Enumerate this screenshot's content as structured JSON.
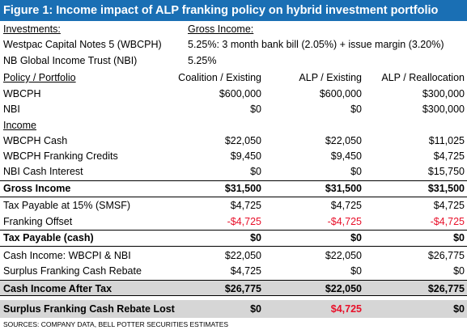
{
  "title": "Figure 1: Income impact of ALP franking policy on hybrid investment portfolio",
  "investments_header": "Investments:",
  "gross_income_header": "Gross Income:",
  "investments": [
    {
      "name": "Westpac Capital Notes 5 (WBCPH)",
      "income": "5.25%: 3 month bank bill (2.05%) + issue margin (3.20%)"
    },
    {
      "name": "NB Global Income Trust (NBI)",
      "income": "5.25%"
    }
  ],
  "columns": {
    "policy": "Policy / Portfolio",
    "c1": "Coalition / Existing",
    "c2": "ALP / Existing",
    "c3": "ALP / Reallocation"
  },
  "rows": [
    {
      "label": "WBCPH",
      "v": [
        "$600,000",
        "$600,000",
        "$300,000"
      ]
    },
    {
      "label": "NBI",
      "v": [
        "$0",
        "$0",
        "$300,000"
      ]
    },
    {
      "label": "Income",
      "v": [
        "",
        "",
        ""
      ]
    },
    {
      "label": "WBCPH Cash",
      "v": [
        "$22,050",
        "$22,050",
        "$11,025"
      ]
    },
    {
      "label": "WBCPH Franking Credits",
      "v": [
        "$9,450",
        "$9,450",
        "$4,725"
      ]
    },
    {
      "label": "NBI Cash Interest",
      "v": [
        "$0",
        "$0",
        "$15,750"
      ]
    },
    {
      "label": "Gross Income",
      "v": [
        "$31,500",
        "$31,500",
        "$31,500"
      ]
    },
    {
      "label": "Tax Payable at 15% (SMSF)",
      "v": [
        "$4,725",
        "$4,725",
        "$4,725"
      ]
    },
    {
      "label": "Franking Offset",
      "v": [
        "-$4,725",
        "-$4,725",
        "-$4,725"
      ]
    },
    {
      "label": "Tax Payable (cash)",
      "v": [
        "$0",
        "$0",
        "$0"
      ]
    },
    {
      "label": "Cash Income: WBCPI & NBI",
      "v": [
        "$22,050",
        "$22,050",
        "$26,775"
      ]
    },
    {
      "label": "Surplus Franking Cash Rebate",
      "v": [
        "$4,725",
        "$0",
        "$0"
      ]
    },
    {
      "label": "Cash Income After Tax",
      "v": [
        "$26,775",
        "$22,050",
        "$26,775"
      ]
    },
    {
      "label": "Surplus Franking Cash Rebate Lost",
      "v": [
        "$0",
        "$4,725",
        "$0"
      ]
    }
  ],
  "source": "SOURCES: COMPANY DATA, BELL POTTER SECURITIES ESTIMATES",
  "colors": {
    "title_bg": "#1a6fb4",
    "negative": "#e8102a",
    "highlight": "#d6d6d6"
  }
}
